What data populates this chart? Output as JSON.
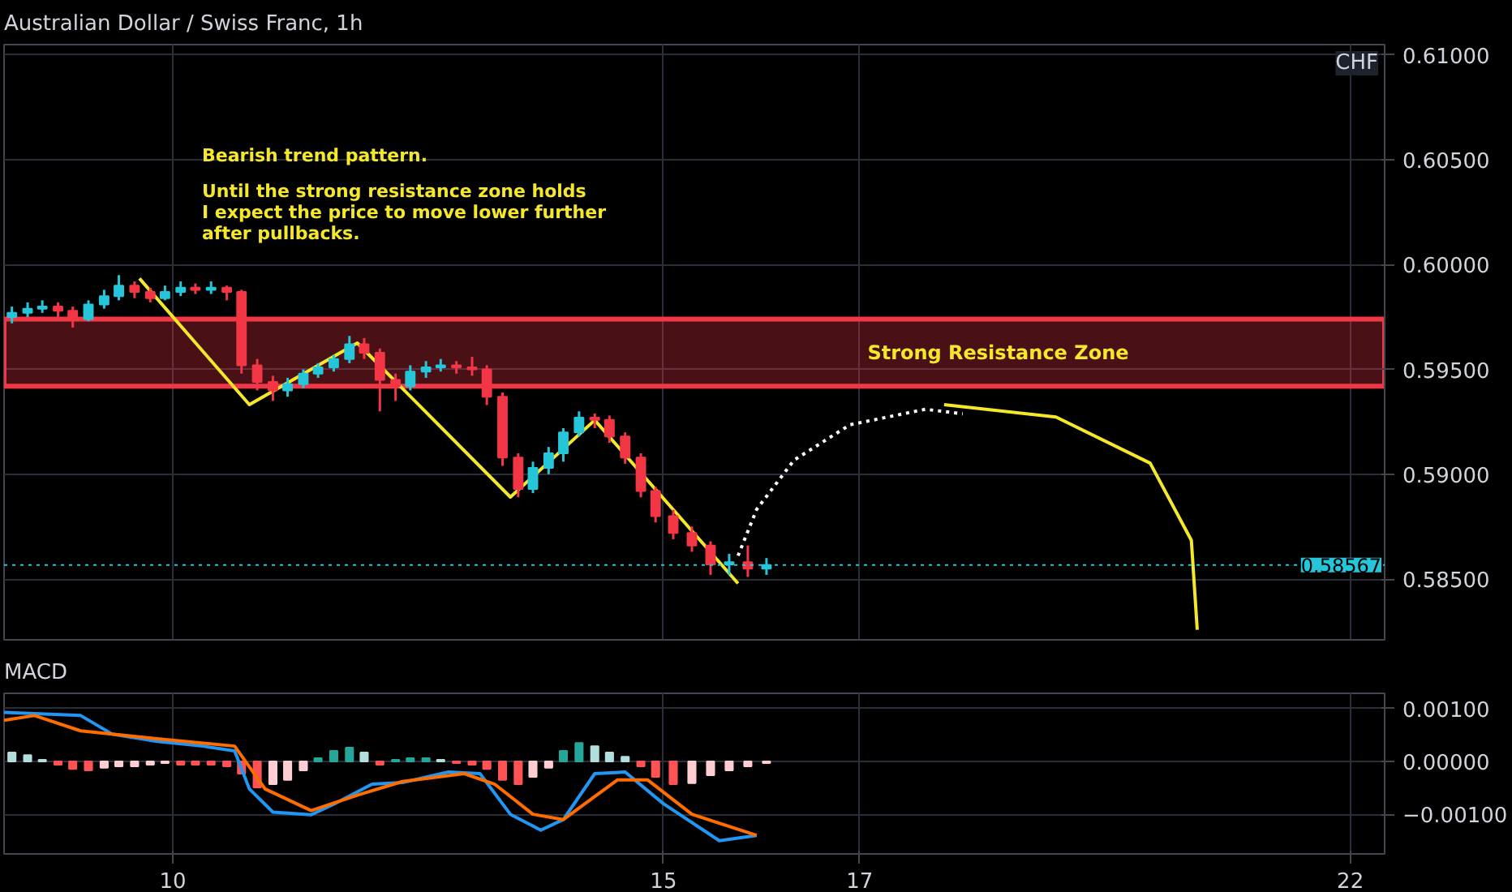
{
  "chart_data": [
    {
      "type": "candlestick",
      "title": "Australian Dollar / Swiss Franc, 1h",
      "ylabel": "CHF",
      "x": [
        8.36,
        8.52,
        8.67,
        8.83,
        8.98,
        9.14,
        9.3,
        9.45,
        9.61,
        9.77,
        9.92,
        10.08,
        10.23,
        10.39,
        10.55,
        10.7,
        10.86,
        11.02,
        11.17,
        11.33,
        11.48,
        11.64,
        11.8,
        11.95,
        12.11,
        12.27,
        12.42,
        12.58,
        12.73,
        12.89,
        13.05,
        13.2,
        13.36,
        13.52,
        13.67,
        13.83,
        13.98,
        14.14,
        14.3,
        14.45,
        14.61,
        14.77,
        14.92,
        15.1,
        15.29,
        15.48,
        15.67,
        15.86,
        16.05
      ],
      "ohlc": [
        [
          0.5975,
          0.598,
          0.5972,
          0.5977
        ],
        [
          0.5977,
          0.5982,
          0.5975,
          0.5979
        ],
        [
          0.5979,
          0.5983,
          0.5977,
          0.598
        ],
        [
          0.598,
          0.5982,
          0.5975,
          0.5978
        ],
        [
          0.5978,
          0.598,
          0.597,
          0.5974
        ],
        [
          0.5974,
          0.5983,
          0.5973,
          0.5981
        ],
        [
          0.5981,
          0.5988,
          0.5979,
          0.5985
        ],
        [
          0.5985,
          0.5995,
          0.5983,
          0.599
        ],
        [
          0.599,
          0.5992,
          0.5984,
          0.5987
        ],
        [
          0.5987,
          0.5989,
          0.5982,
          0.5984
        ],
        [
          0.5984,
          0.599,
          0.5983,
          0.5987
        ],
        [
          0.5987,
          0.5992,
          0.5985,
          0.5989
        ],
        [
          0.5989,
          0.5991,
          0.5986,
          0.5988
        ],
        [
          0.5988,
          0.5992,
          0.5986,
          0.5989
        ],
        [
          0.5989,
          0.599,
          0.5983,
          0.5987
        ],
        [
          0.5987,
          0.5988,
          0.5948,
          0.5952
        ],
        [
          0.5952,
          0.5955,
          0.594,
          0.5944
        ],
        [
          0.5944,
          0.5947,
          0.5935,
          0.594
        ],
        [
          0.594,
          0.5946,
          0.5937,
          0.5943
        ],
        [
          0.5943,
          0.595,
          0.5941,
          0.5948
        ],
        [
          0.5948,
          0.5953,
          0.5946,
          0.5951
        ],
        [
          0.5951,
          0.5957,
          0.5949,
          0.5955
        ],
        [
          0.5955,
          0.5966,
          0.5953,
          0.5962
        ],
        [
          0.5962,
          0.5965,
          0.5955,
          0.5958
        ],
        [
          0.5958,
          0.596,
          0.593,
          0.5945
        ],
        [
          0.5945,
          0.5948,
          0.5935,
          0.5942
        ],
        [
          0.5942,
          0.5952,
          0.594,
          0.5949
        ],
        [
          0.5949,
          0.5954,
          0.5946,
          0.5951
        ],
        [
          0.5951,
          0.5955,
          0.5949,
          0.5952
        ],
        [
          0.5952,
          0.5954,
          0.5948,
          0.5951
        ],
        [
          0.5951,
          0.5956,
          0.5947,
          0.595
        ],
        [
          0.595,
          0.5952,
          0.5933,
          0.5937
        ],
        [
          0.5937,
          0.5939,
          0.5904,
          0.5908
        ],
        [
          0.5908,
          0.591,
          0.5889,
          0.5893
        ],
        [
          0.5893,
          0.5906,
          0.5891,
          0.5903
        ],
        [
          0.5903,
          0.5913,
          0.59,
          0.591
        ],
        [
          0.591,
          0.5922,
          0.5906,
          0.592
        ],
        [
          0.592,
          0.593,
          0.5918,
          0.5927
        ],
        [
          0.5927,
          0.5929,
          0.5922,
          0.5926
        ],
        [
          0.5926,
          0.5928,
          0.5915,
          0.5918
        ],
        [
          0.5918,
          0.592,
          0.5905,
          0.5908
        ],
        [
          0.5908,
          0.591,
          0.5889,
          0.5892
        ],
        [
          0.5892,
          0.5894,
          0.5877,
          0.588
        ],
        [
          0.588,
          0.5883,
          0.5869,
          0.5872
        ],
        [
          0.5872,
          0.5875,
          0.5863,
          0.5866
        ],
        [
          0.5866,
          0.5868,
          0.5852,
          0.5857
        ],
        [
          0.5857,
          0.5862,
          0.5852,
          0.5858
        ],
        [
          0.5858,
          0.5866,
          0.5851,
          0.5855
        ],
        [
          0.5855,
          0.586,
          0.5852,
          0.58567
        ]
      ],
      "colors": [
        "#26c6da",
        "#26c6da",
        "#26c6da",
        "#f23645",
        "#f23645",
        "#26c6da",
        "#26c6da",
        "#26c6da",
        "#f23645",
        "#f23645",
        "#26c6da",
        "#26c6da",
        "#f23645",
        "#26c6da",
        "#f23645",
        "#f23645",
        "#f23645",
        "#f23645",
        "#26c6da",
        "#26c6da",
        "#26c6da",
        "#26c6da",
        "#26c6da",
        "#f23645",
        "#f23645",
        "#f23645",
        "#26c6da",
        "#26c6da",
        "#26c6da",
        "#f23645",
        "#f23645",
        "#f23645",
        "#f23645",
        "#f23645",
        "#26c6da",
        "#26c6da",
        "#26c6da",
        "#26c6da",
        "#f23645",
        "#f23645",
        "#f23645",
        "#f23645",
        "#f23645",
        "#f23645",
        "#f23645",
        "#f23645",
        "#26c6da",
        "#f23645",
        "#26c6da"
      ],
      "series": [
        {
          "type": "line",
          "color": "#f5e82a",
          "line_style": "solid",
          "x": [
            9.66,
            10.78,
            11.88,
            13.44,
            14.3,
            15.76
          ],
          "values": [
            0.59934,
            0.59332,
            0.59626,
            0.58891,
            0.59258,
            0.58479
          ]
        },
        {
          "type": "line",
          "color": "#ffffff",
          "line_style": "dotted",
          "x": [
            15.76,
            15.95,
            16.33,
            16.9,
            17.67,
            18.05
          ],
          "values": [
            0.58611,
            0.58832,
            0.59067,
            0.59236,
            0.5931,
            0.59288
          ]
        },
        {
          "type": "line",
          "color": "#f5e82a",
          "line_style": "solid",
          "x": [
            17.86,
            19.0,
            19.96,
            20.38,
            20.44
          ],
          "values": [
            0.59332,
            0.59273,
            0.59053,
            0.58685,
            0.58258
          ]
        }
      ],
      "annotations": [
        "Bearish trend pattern.",
        "Until the strong resistance zone holds\nI expect the price to move lower further\nafter pullbacks."
      ],
      "bands": [
        {
          "axis": "y",
          "from": 0.5942,
          "to": 0.5974,
          "label": "Strong Resistance Zone",
          "color": "#f23645"
        }
      ],
      "ref_lines": [
        {
          "axis": "y",
          "value": 0.58567,
          "label": "0.58567",
          "color": "#26c6da",
          "line_style": "dotted"
        }
      ],
      "xlim": [
        8.28,
        22.35
      ],
      "xticks": [
        10,
        15,
        17,
        22
      ],
      "ylim": [
        0.5821,
        0.6105
      ],
      "yticks": [
        {
          "value": 0.585,
          "label": "0.58500"
        },
        {
          "value": 0.59,
          "label": "0.59000"
        },
        {
          "value": 0.595,
          "label": "0.59500"
        },
        {
          "value": 0.6,
          "label": "0.60000"
        },
        {
          "value": 0.605,
          "label": "0.60500"
        },
        {
          "value": 0.61,
          "label": "0.61000"
        }
      ],
      "grid": true,
      "tick_labels": "y"
    },
    {
      "type": "bar",
      "title": "MACD",
      "x": [
        8.36,
        8.52,
        8.67,
        8.83,
        8.98,
        9.14,
        9.3,
        9.45,
        9.61,
        9.77,
        9.92,
        10.08,
        10.23,
        10.39,
        10.55,
        10.7,
        10.86,
        11.02,
        11.17,
        11.33,
        11.48,
        11.64,
        11.8,
        11.95,
        12.11,
        12.27,
        12.42,
        12.58,
        12.73,
        12.89,
        13.05,
        13.2,
        13.36,
        13.52,
        13.67,
        13.83,
        13.98,
        14.14,
        14.3,
        14.45,
        14.61,
        14.77,
        14.92,
        15.1,
        15.29,
        15.48,
        15.67,
        15.86,
        16.05
      ],
      "values": [
        0.00017,
        0.00012,
        3e-05,
        -6e-05,
        -0.00014,
        -0.00017,
        -0.00012,
        -9e-05,
        -9e-05,
        -6e-05,
        -3e-05,
        -6e-05,
        -6e-05,
        -6e-05,
        -9e-05,
        -0.00023,
        -0.00049,
        -0.00043,
        -0.00035,
        -0.00017,
        6e-05,
        0.0002,
        0.00026,
        0.00017,
        -6e-05,
        3e-05,
        6e-05,
        6e-05,
        3e-05,
        -3e-05,
        -6e-05,
        -0.00014,
        -0.00035,
        -0.00043,
        -0.00029,
        -0.00012,
        0.0002,
        0.00035,
        0.00029,
        0.00017,
        9e-05,
        -9e-05,
        -0.00029,
        -0.00043,
        -0.00041,
        -0.00026,
        -0.00017,
        -9e-05,
        -3e-05
      ],
      "colors": [
        "#b2dfdb",
        "#b2dfdb",
        "#b2dfdb",
        "#ff5252",
        "#ff5252",
        "#ff5252",
        "#ffcdd2",
        "#ffcdd2",
        "#ffcdd2",
        "#ffcdd2",
        "#ffcdd2",
        "#ff5252",
        "#ff5252",
        "#ff5252",
        "#ff5252",
        "#ff5252",
        "#ff5252",
        "#ffcdd2",
        "#ffcdd2",
        "#ffcdd2",
        "#26a69a",
        "#26a69a",
        "#26a69a",
        "#b2dfdb",
        "#ff5252",
        "#26a69a",
        "#26a69a",
        "#26a69a",
        "#b2dfdb",
        "#ff5252",
        "#ff5252",
        "#ff5252",
        "#ff5252",
        "#ff5252",
        "#ffcdd2",
        "#ffcdd2",
        "#26a69a",
        "#26a69a",
        "#b2dfdb",
        "#b2dfdb",
        "#b2dfdb",
        "#ff5252",
        "#ff5252",
        "#ff5252",
        "#ffcdd2",
        "#ffcdd2",
        "#ffcdd2",
        "#ffcdd2",
        "#ffcdd2"
      ],
      "series": [
        {
          "type": "line",
          "color": "#2196f3",
          "x": [
            8.28,
            9.06,
            9.38,
            9.84,
            10.31,
            10.63,
            10.78,
            11.02,
            11.41,
            11.64,
            12.03,
            12.34,
            12.81,
            13.13,
            13.44,
            13.75,
            13.98,
            14.3,
            14.61,
            15.0,
            15.57,
            15.95
          ],
          "values": [
            0.00093,
            0.00087,
            0.00052,
            0.00038,
            0.00029,
            0.0002,
            -0.00052,
            -0.00096,
            -0.00101,
            -0.00081,
            -0.00043,
            -0.0004,
            -0.0002,
            -0.00023,
            -0.001,
            -0.0013,
            -0.0011,
            -0.00023,
            -0.0002,
            -0.0008,
            -0.0015,
            -0.0014
          ]
        },
        {
          "type": "line",
          "color": "#ff6d00",
          "x": [
            8.28,
            8.59,
            9.06,
            9.84,
            10.63,
            10.94,
            11.41,
            11.88,
            12.34,
            12.97,
            13.28,
            13.67,
            13.98,
            14.53,
            14.84,
            15.29,
            15.95
          ],
          "values": [
            0.00078,
            0.00087,
            0.00058,
            0.00043,
            0.00029,
            -0.00052,
            -0.00093,
            -0.00064,
            -0.00038,
            -0.00023,
            -0.00043,
            -0.001,
            -0.0011,
            -0.00035,
            -0.00035,
            -0.001,
            -0.0014
          ]
        }
      ],
      "xlim": [
        8.28,
        22.35
      ],
      "xticks": [
        10,
        15,
        17,
        22
      ],
      "ylim": [
        -0.00175,
        0.00129
      ],
      "yticks": [
        {
          "value": -0.001,
          "label": "−0.00100"
        },
        {
          "value": 0,
          "label": "0.00000"
        },
        {
          "value": 0.001,
          "label": "0.00100"
        }
      ],
      "grid": true
    }
  ]
}
